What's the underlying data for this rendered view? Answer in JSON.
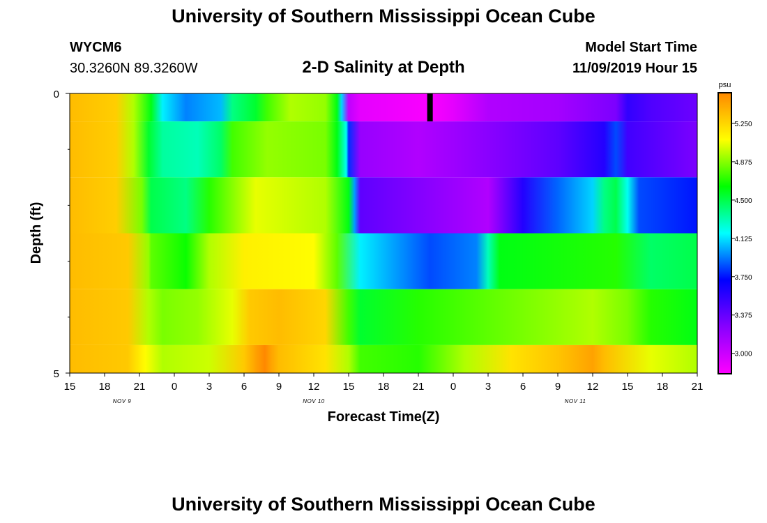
{
  "header": {
    "title": "University of Southern Mississippi Ocean Cube",
    "station_id": "WYCM6",
    "coordinates": "30.3260N 89.3260W",
    "plot_title": "2-D Salinity at Depth",
    "model_start_label": "Model Start Time",
    "model_start_value": "11/09/2019 Hour 15"
  },
  "footer": {
    "title": "University of Southern Mississippi Ocean Cube"
  },
  "chart_data": {
    "type": "heatmap",
    "title": "2-D Salinity at Depth",
    "xlabel": "Forecast Time(Z)",
    "ylabel": "Depth (ft)",
    "x_range_hours": [
      0,
      54
    ],
    "y_range_ft": [
      0,
      5
    ],
    "x_tick_labels": [
      "15",
      "18",
      "21",
      "0",
      "3",
      "6",
      "9",
      "12",
      "15",
      "18",
      "21",
      "0",
      "3",
      "6",
      "9",
      "12",
      "15",
      "18",
      "21"
    ],
    "x_tick_hours": [
      0,
      3,
      6,
      9,
      12,
      15,
      18,
      21,
      24,
      27,
      30,
      33,
      36,
      39,
      42,
      45,
      48,
      51,
      54
    ],
    "date_labels": [
      {
        "text": "NOV  9",
        "hour": 4.5
      },
      {
        "text": "NOV  10",
        "hour": 21
      },
      {
        "text": "NOV  11",
        "hour": 43.5
      }
    ],
    "y_tick_labels": [
      "0",
      "5"
    ],
    "y_tick_values": [
      0,
      5
    ],
    "y_minor_ticks": [
      1,
      2,
      3,
      4
    ],
    "colorbar": {
      "unit": "psu",
      "range": [
        2.8,
        5.55
      ],
      "tick_labels": [
        "5.250",
        "4.875",
        "4.500",
        "4.125",
        "3.750",
        "3.375",
        "3.000"
      ],
      "tick_values": [
        5.25,
        4.875,
        4.5,
        4.125,
        3.75,
        3.375,
        3.0
      ],
      "colors": [
        "#ff00ff",
        "#8800ff",
        "#0000ff",
        "#00ffff",
        "#00ff00",
        "#ffff00",
        "#ff8800"
      ]
    },
    "depth_layers": [
      {
        "top": 0,
        "bottom": 0.5
      },
      {
        "top": 0.5,
        "bottom": 1.5
      },
      {
        "top": 1.5,
        "bottom": 2.5
      },
      {
        "top": 2.5,
        "bottom": 3.5
      },
      {
        "top": 3.5,
        "bottom": 4.5
      },
      {
        "top": 4.5,
        "bottom": 5
      }
    ],
    "salinity_profiles": [
      [
        [
          0,
          5.35
        ],
        [
          4,
          5.28
        ],
        [
          5.5,
          4.95
        ],
        [
          7,
          4.6
        ],
        [
          8,
          4.15
        ],
        [
          10,
          3.95
        ],
        [
          13,
          4.05
        ],
        [
          14,
          4.4
        ],
        [
          16,
          4.55
        ],
        [
          17,
          4.75
        ],
        [
          19,
          4.95
        ],
        [
          22,
          4.9
        ],
        [
          23,
          4.6
        ],
        [
          23.4,
          4.1
        ],
        [
          24,
          3.05
        ],
        [
          25,
          2.9
        ],
        [
          31,
          2.82
        ],
        [
          33,
          2.9
        ],
        [
          36,
          3.1
        ],
        [
          42,
          3.15
        ],
        [
          47,
          3.3
        ],
        [
          48,
          3.55
        ],
        [
          50,
          3.45
        ],
        [
          54,
          3.35
        ]
      ],
      [
        [
          0,
          5.35
        ],
        [
          4,
          5.28
        ],
        [
          5.5,
          4.95
        ],
        [
          6.8,
          4.55
        ],
        [
          8,
          4.35
        ],
        [
          11,
          4.3
        ],
        [
          13,
          4.45
        ],
        [
          14,
          4.75
        ],
        [
          17,
          4.9
        ],
        [
          22,
          4.85
        ],
        [
          23,
          4.6
        ],
        [
          23.8,
          4.2
        ],
        [
          24,
          3.8
        ],
        [
          25,
          3.2
        ],
        [
          30,
          3.1
        ],
        [
          36,
          3.25
        ],
        [
          42,
          3.4
        ],
        [
          46,
          3.6
        ],
        [
          47,
          3.85
        ],
        [
          48,
          3.5
        ],
        [
          54,
          3.3
        ]
      ],
      [
        [
          0,
          5.35
        ],
        [
          4,
          5.28
        ],
        [
          6.2,
          4.85
        ],
        [
          7,
          4.5
        ],
        [
          10,
          4.4
        ],
        [
          12,
          4.7
        ],
        [
          16,
          5.05
        ],
        [
          22,
          4.95
        ],
        [
          24,
          4.6
        ],
        [
          24.5,
          4.0
        ],
        [
          25,
          3.4
        ],
        [
          36,
          3.1
        ],
        [
          39,
          3.6
        ],
        [
          42,
          3.9
        ],
        [
          45,
          4.1
        ],
        [
          46,
          4.4
        ],
        [
          47,
          4.5
        ],
        [
          48,
          4.2
        ],
        [
          49,
          3.85
        ],
        [
          54,
          3.75
        ]
      ],
      [
        [
          0,
          5.35
        ],
        [
          5,
          5.3
        ],
        [
          6.8,
          4.9
        ],
        [
          7,
          4.8
        ],
        [
          10,
          4.65
        ],
        [
          12,
          4.95
        ],
        [
          15,
          5.15
        ],
        [
          21,
          5.1
        ],
        [
          23,
          4.8
        ],
        [
          25,
          4.15
        ],
        [
          31,
          3.85
        ],
        [
          35,
          3.95
        ],
        [
          36,
          4.3
        ],
        [
          37,
          4.6
        ],
        [
          47,
          4.7
        ],
        [
          50,
          4.45
        ],
        [
          54,
          4.5
        ]
      ],
      [
        [
          0,
          5.35
        ],
        [
          5,
          5.3
        ],
        [
          6.8,
          4.95
        ],
        [
          8,
          4.85
        ],
        [
          11,
          4.9
        ],
        [
          14,
          5.05
        ],
        [
          15.5,
          5.3
        ],
        [
          18,
          5.35
        ],
        [
          22,
          5.25
        ],
        [
          24,
          4.75
        ],
        [
          25,
          4.55
        ],
        [
          30,
          4.7
        ],
        [
          36,
          4.8
        ],
        [
          45,
          4.95
        ],
        [
          48,
          4.85
        ],
        [
          50,
          4.7
        ],
        [
          54,
          4.6
        ]
      ],
      [
        [
          0,
          5.35
        ],
        [
          5,
          5.3
        ],
        [
          6.5,
          5.1
        ],
        [
          8,
          4.95
        ],
        [
          12,
          5.0
        ],
        [
          15,
          5.3
        ],
        [
          16,
          5.45
        ],
        [
          16.8,
          5.58
        ],
        [
          17.3,
          5.45
        ],
        [
          18,
          5.35
        ],
        [
          22,
          5.2
        ],
        [
          24,
          4.95
        ],
        [
          25,
          4.75
        ],
        [
          30,
          4.7
        ],
        [
          34,
          4.95
        ],
        [
          38,
          5.2
        ],
        [
          42,
          5.32
        ],
        [
          45,
          5.45
        ],
        [
          46,
          5.35
        ],
        [
          50,
          5.05
        ],
        [
          54,
          4.95
        ]
      ]
    ],
    "grid_marker": {
      "hour": 31,
      "depth_top": 0,
      "depth_bottom": 0.5
    }
  }
}
